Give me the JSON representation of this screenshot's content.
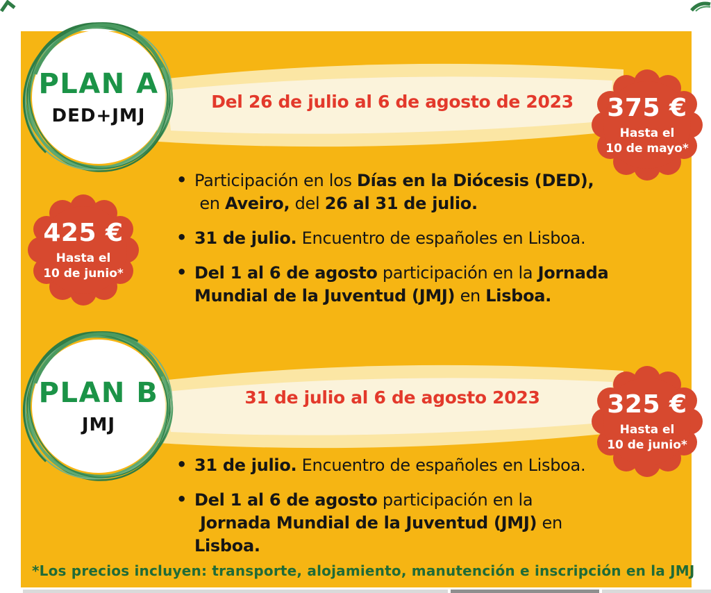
{
  "poster": {
    "title": "JMJ Lisboa 2023 - planes y precios",
    "colors": {
      "card_yellow": "#F6B513",
      "banner_halo": "#FBE6A4",
      "banner_cream": "#FBF3DB",
      "banner_text_red": "#E3392B",
      "seal_red": "#D7492F",
      "plan_green": "#1B9347",
      "ring_green": "#3E9158",
      "footer_green": "#1F6B38",
      "body_text": "#161616"
    }
  },
  "plans": [
    {
      "name": "PLAN A",
      "subtitle": "DED+JMJ",
      "date_banner": "Del 26 de julio al 6 de agosto de 2023",
      "price_badge": {
        "price": "375 €",
        "deadline_line1": "Hasta el",
        "deadline_line2": "10 de mayo*"
      },
      "early_badge": {
        "price": "425 €",
        "deadline_line1": "Hasta el",
        "deadline_line2": "10 de junio*"
      },
      "bullets": [
        [
          {
            "t": "Participación en los ",
            "b": false
          },
          {
            "t": "Días en la Diócesis (DED),",
            "b": true
          },
          {
            "br": true
          },
          {
            "t": " en ",
            "b": false
          },
          {
            "t": "Aveiro,",
            "b": true
          },
          {
            "t": " del ",
            "b": false
          },
          {
            "t": "26 al 31 de julio.",
            "b": true
          }
        ],
        [
          {
            "t": "31 de julio.",
            "b": true
          },
          {
            "t": " Encuentro de españoles en Lisboa.",
            "b": false
          }
        ],
        [
          {
            "t": "Del 1 al 6 de agosto",
            "b": true
          },
          {
            "t": " participación en la ",
            "b": false
          },
          {
            "t": "Jornada",
            "b": true
          },
          {
            "br": true
          },
          {
            "t": "Mundial de la Juventud (JMJ)",
            "b": true
          },
          {
            "t": " en ",
            "b": false
          },
          {
            "t": "Lisboa.",
            "b": true
          }
        ]
      ]
    },
    {
      "name": "PLAN B",
      "subtitle": "JMJ",
      "date_banner": "31 de julio al 6 de agosto 2023",
      "price_badge": {
        "price": "325 €",
        "deadline_line1": "Hasta el",
        "deadline_line2": "10 de junio*"
      },
      "bullets": [
        [
          {
            "t": "31 de julio.",
            "b": true
          },
          {
            "t": " Encuentro de españoles en Lisboa.",
            "b": false
          }
        ],
        [
          {
            "t": "Del 1 al 6 de agosto",
            "b": true
          },
          {
            "t": " participación en la",
            "b": false
          },
          {
            "br": true
          },
          {
            "t": " Jornada Mundial de la Juventud (JMJ)",
            "b": true
          },
          {
            "t": " en",
            "b": false
          },
          {
            "br": true
          },
          {
            "t": "Lisboa.",
            "b": true
          }
        ]
      ]
    }
  ],
  "footer": {
    "note": "*Los precios incluyen: transporte, alojamiento, manutención e inscripción en la JMJ"
  }
}
